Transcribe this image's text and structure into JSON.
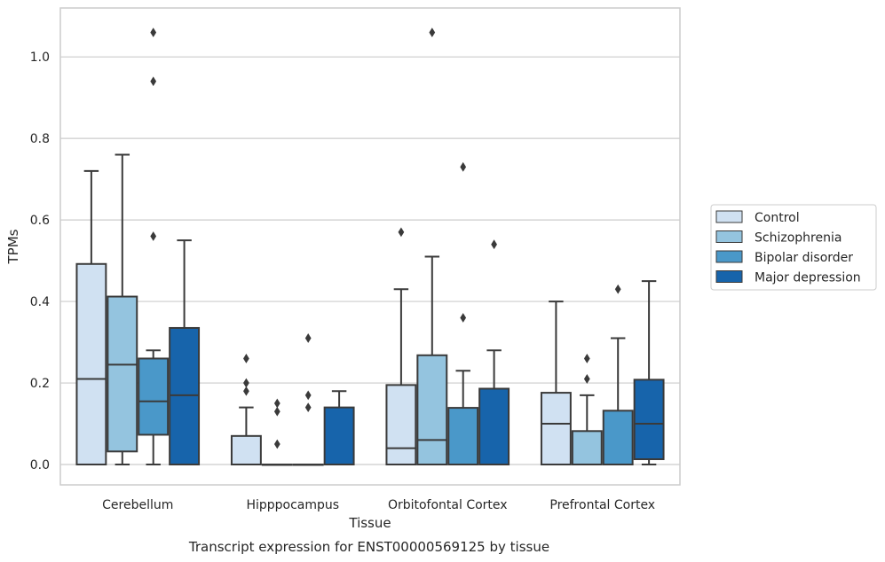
{
  "chart_data": {
    "type": "box",
    "xlabel": "Tissue",
    "ylabel": "TPMs",
    "caption": "Transcript expression for ENST00000569125 by tissue",
    "ylim": [
      -0.05,
      1.12
    ],
    "yticks": [
      "0.0",
      "0.2",
      "0.4",
      "0.6",
      "0.8",
      "1.0"
    ],
    "grid": true,
    "legend_position": "right",
    "categories": [
      "Cerebellum",
      "Hipppocampus",
      "Orbitofontal Cortex",
      "Prefrontal Cortex"
    ],
    "series": [
      {
        "name": "Control",
        "color": "#d0e1f2",
        "boxes": [
          {
            "min": 0.0,
            "q1": 0.0,
            "median": 0.21,
            "q3": 0.492,
            "max": 0.72,
            "outliers": []
          },
          {
            "min": 0.0,
            "q1": 0.0,
            "median": 0.0,
            "q3": 0.07,
            "max": 0.14,
            "outliers": [
              0.18,
              0.2,
              0.26
            ]
          },
          {
            "min": 0.0,
            "q1": 0.0,
            "median": 0.04,
            "q3": 0.195,
            "max": 0.43,
            "outliers": [
              0.57
            ]
          },
          {
            "min": 0.0,
            "q1": 0.0,
            "median": 0.1,
            "q3": 0.176,
            "max": 0.4,
            "outliers": []
          }
        ]
      },
      {
        "name": "Schizophrenia",
        "color": "#94c4df",
        "boxes": [
          {
            "min": 0.0,
            "q1": 0.032,
            "median": 0.245,
            "q3": 0.412,
            "max": 0.76,
            "outliers": []
          },
          {
            "min": 0.0,
            "q1": 0.0,
            "median": 0.0,
            "q3": 0.0,
            "max": 0.0,
            "outliers": [
              0.05,
              0.13,
              0.15
            ]
          },
          {
            "min": 0.0,
            "q1": 0.0,
            "median": 0.06,
            "q3": 0.268,
            "max": 0.51,
            "outliers": [
              1.06
            ]
          },
          {
            "min": 0.0,
            "q1": 0.0,
            "median": 0.0,
            "q3": 0.082,
            "max": 0.17,
            "outliers": [
              0.21,
              0.26
            ]
          }
        ]
      },
      {
        "name": "Bipolar disorder",
        "color": "#4a98c9",
        "boxes": [
          {
            "min": 0.0,
            "q1": 0.073,
            "median": 0.155,
            "q3": 0.26,
            "max": 0.28,
            "outliers": [
              0.56,
              0.94,
              1.06
            ]
          },
          {
            "min": 0.0,
            "q1": 0.0,
            "median": 0.0,
            "q3": 0.0,
            "max": 0.0,
            "outliers": [
              0.14,
              0.17,
              0.31
            ]
          },
          {
            "min": 0.0,
            "q1": 0.0,
            "median": 0.0,
            "q3": 0.139,
            "max": 0.23,
            "outliers": [
              0.36,
              0.73
            ]
          },
          {
            "min": 0.0,
            "q1": 0.0,
            "median": 0.0,
            "q3": 0.132,
            "max": 0.31,
            "outliers": [
              0.43
            ]
          }
        ]
      },
      {
        "name": "Major depression",
        "color": "#1764ab",
        "boxes": [
          {
            "min": 0.0,
            "q1": 0.0,
            "median": 0.17,
            "q3": 0.335,
            "max": 0.55,
            "outliers": []
          },
          {
            "min": 0.0,
            "q1": 0.0,
            "median": 0.0,
            "q3": 0.14,
            "max": 0.18,
            "outliers": []
          },
          {
            "min": 0.0,
            "q1": 0.0,
            "median": 0.0,
            "q3": 0.186,
            "max": 0.28,
            "outliers": [
              0.54
            ]
          },
          {
            "min": 0.0,
            "q1": 0.013,
            "median": 0.1,
            "q3": 0.208,
            "max": 0.45,
            "outliers": []
          }
        ]
      }
    ]
  }
}
